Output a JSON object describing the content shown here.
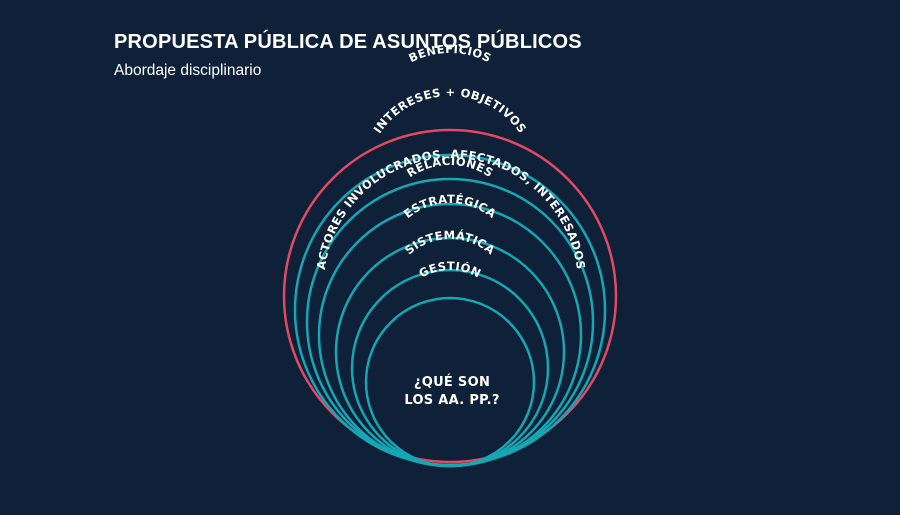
{
  "header": {
    "title": "PROPUESTA PÚBLICA DE ASUNTOS PÚBLICOS",
    "subtitle": "Abordaje disciplinario"
  },
  "diagram": {
    "outer_label": "BENEFICIOS",
    "layers": [
      "INTERESES + OBJETIVOS",
      "ACTORES INVOLUCRADOS, AFECTADOS, INTERESADOS",
      "RELACIONES",
      "ESTRATÉGICA",
      "SISTEMÁTICA",
      "GESTIÓN"
    ],
    "center_line1": "¿QUÉ SON",
    "center_line2": "LOS AA. PP.?",
    "colors": {
      "background": "#0e2138",
      "outer_ring": "#e24a63",
      "inner_rings": "#17a6b4",
      "text": "#ffffff"
    }
  }
}
